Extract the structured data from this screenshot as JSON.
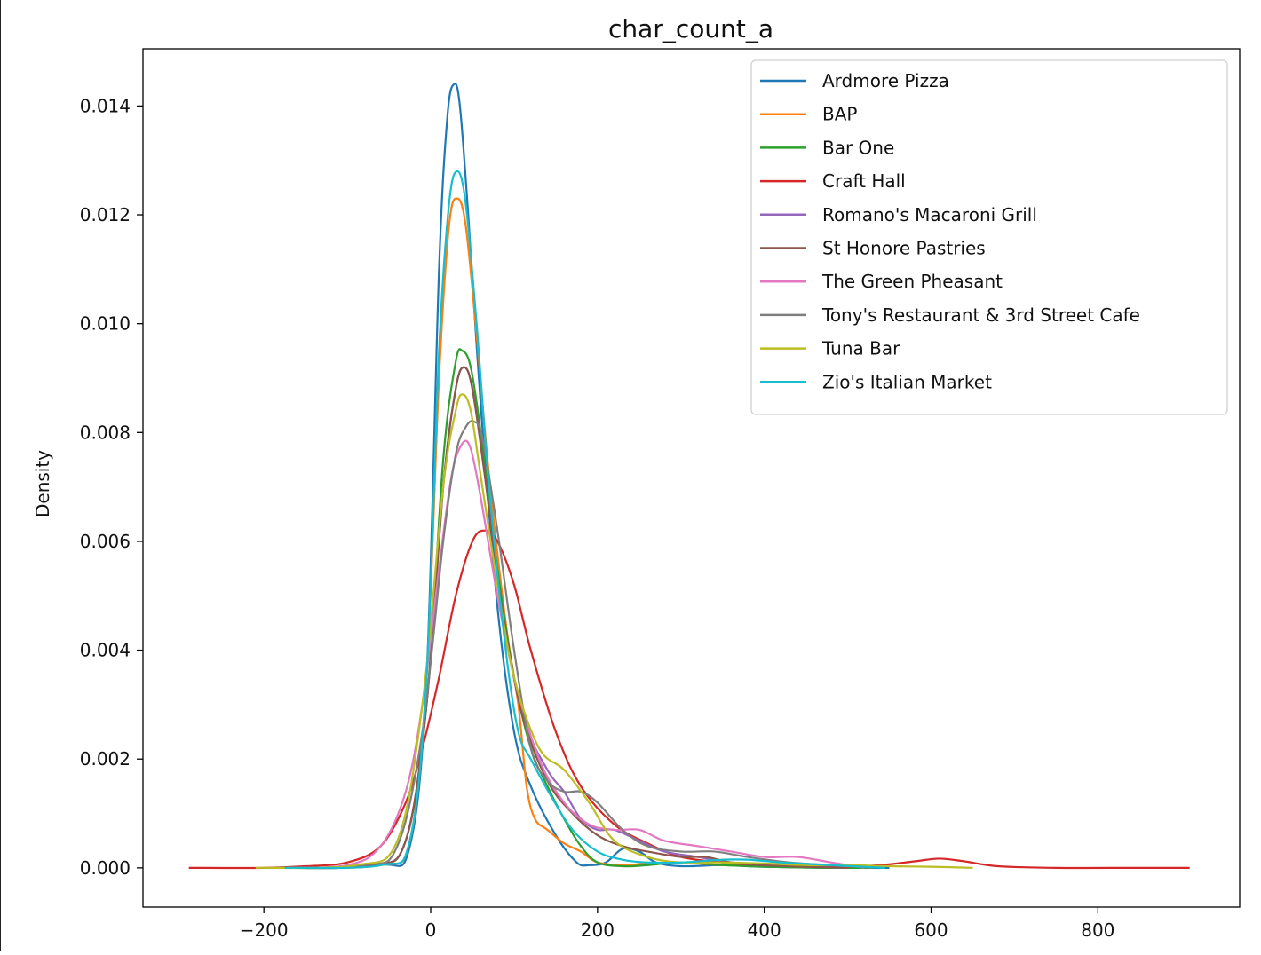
{
  "chart_data": {
    "type": "line",
    "title": "char_count_a",
    "xlabel": "",
    "ylabel": "Density",
    "xlim": [
      -345,
      970
    ],
    "ylim": [
      -0.00072,
      0.01505
    ],
    "xticks": [
      -200,
      0,
      200,
      400,
      600,
      800
    ],
    "xtick_labels": [
      "−200",
      "0",
      "200",
      "400",
      "600",
      "800"
    ],
    "yticks": [
      0.0,
      0.002,
      0.004,
      0.006,
      0.008,
      0.01,
      0.012,
      0.014
    ],
    "ytick_labels": [
      "0.000",
      "0.002",
      "0.004",
      "0.006",
      "0.008",
      "0.010",
      "0.012",
      "0.014"
    ],
    "grid": false,
    "legend_position": "top-right",
    "series": [
      {
        "name": "Ardmore Pizza",
        "color": "#1f77b4",
        "x": [
          -170,
          -60,
          -25,
          -5,
          10,
          20,
          28,
          35,
          45,
          60,
          80,
          100,
          120,
          150,
          175,
          190,
          210,
          230,
          250,
          270,
          300,
          350,
          400,
          480,
          550
        ],
        "y": [
          0,
          5e-05,
          0.0004,
          0.0035,
          0.011,
          0.0138,
          0.0144,
          0.014,
          0.012,
          0.0085,
          0.0048,
          0.0025,
          0.0015,
          0.0006,
          0.0001,
          5e-05,
          0.0001,
          0.00035,
          0.0003,
          0.0001,
          3e-05,
          5e-05,
          2e-05,
          0,
          0
        ]
      },
      {
        "name": "BAP",
        "color": "#ff7f0e",
        "x": [
          -180,
          -60,
          -25,
          -5,
          10,
          22,
          32,
          42,
          55,
          70,
          90,
          105,
          115,
          125,
          140,
          160,
          180,
          200,
          230,
          260,
          300,
          350,
          420,
          500
        ],
        "y": [
          0,
          5e-05,
          0.0005,
          0.0035,
          0.009,
          0.0118,
          0.0123,
          0.0118,
          0.0098,
          0.0072,
          0.0045,
          0.003,
          0.0015,
          0.0009,
          0.0007,
          0.00045,
          0.0003,
          0.0001,
          5e-05,
          8e-05,
          0.0001,
          5e-05,
          2e-05,
          0
        ]
      },
      {
        "name": "Bar One",
        "color": "#2ca02c",
        "x": [
          -190,
          -70,
          -30,
          -5,
          15,
          30,
          38,
          48,
          60,
          80,
          100,
          120,
          140,
          160,
          180,
          200,
          230,
          260,
          300,
          350,
          400,
          470,
          530
        ],
        "y": [
          0,
          5e-05,
          0.0005,
          0.003,
          0.0075,
          0.0093,
          0.0095,
          0.0092,
          0.008,
          0.0055,
          0.0035,
          0.0022,
          0.0015,
          0.0009,
          0.0004,
          0.0001,
          3e-05,
          5e-05,
          0.0001,
          5e-05,
          2e-05,
          0,
          0
        ]
      },
      {
        "name": "Craft Hall",
        "color": "#d62728",
        "x": [
          -290,
          -200,
          -150,
          -100,
          -60,
          -30,
          -10,
          10,
          30,
          50,
          65,
          80,
          100,
          120,
          150,
          180,
          220,
          260,
          300,
          350,
          400,
          450,
          500,
          540,
          580,
          610,
          640,
          680,
          750,
          850,
          910
        ],
        "y": [
          0,
          0,
          3e-05,
          0.0001,
          0.0004,
          0.0012,
          0.0022,
          0.0035,
          0.005,
          0.006,
          0.0062,
          0.006,
          0.0052,
          0.004,
          0.0025,
          0.0015,
          0.0008,
          0.00045,
          0.0002,
          0.0001,
          5e-05,
          3e-05,
          2e-05,
          5e-05,
          0.00012,
          0.00017,
          0.00012,
          3e-05,
          0,
          0,
          0
        ]
      },
      {
        "name": "Romano's Macaroni Grill",
        "color": "#9467bd",
        "x": [
          -180,
          -70,
          -30,
          -5,
          15,
          30,
          40,
          50,
          65,
          85,
          110,
          140,
          160,
          180,
          200,
          220,
          250,
          280,
          320,
          360,
          400,
          450,
          500
        ],
        "y": [
          0,
          5e-05,
          0.0005,
          0.003,
          0.007,
          0.0088,
          0.0092,
          0.0088,
          0.0072,
          0.0048,
          0.0028,
          0.0018,
          0.0014,
          0.0009,
          0.0007,
          0.0007,
          0.0005,
          0.0003,
          0.0002,
          0.0001,
          5e-05,
          2e-05,
          0
        ]
      },
      {
        "name": "St Honore Pastries",
        "color": "#8c564b",
        "x": [
          -180,
          -70,
          -30,
          -5,
          15,
          30,
          40,
          50,
          65,
          85,
          110,
          140,
          170,
          200,
          230,
          260,
          300,
          330,
          360,
          400,
          450,
          500
        ],
        "y": [
          0,
          5e-05,
          0.0005,
          0.003,
          0.007,
          0.0088,
          0.0092,
          0.0088,
          0.0072,
          0.0048,
          0.0028,
          0.0016,
          0.001,
          0.0006,
          0.0004,
          0.0003,
          0.0002,
          0.0002,
          0.0001,
          5e-05,
          2e-05,
          0
        ]
      },
      {
        "name": "The Green Pheasant",
        "color": "#e377c2",
        "x": [
          -180,
          -100,
          -60,
          -30,
          -10,
          10,
          25,
          38,
          48,
          60,
          80,
          100,
          130,
          160,
          190,
          220,
          250,
          280,
          320,
          360,
          400,
          440,
          480,
          520
        ],
        "y": [
          0,
          5e-05,
          0.0004,
          0.0014,
          0.003,
          0.0055,
          0.0072,
          0.0078,
          0.0077,
          0.0068,
          0.005,
          0.0035,
          0.002,
          0.0012,
          0.0008,
          0.0007,
          0.0007,
          0.0005,
          0.0004,
          0.0003,
          0.0002,
          0.0002,
          0.0001,
          0
        ]
      },
      {
        "name": "Tony's Restaurant & 3rd Street Cafe",
        "color": "#7f7f7f",
        "x": [
          -190,
          -80,
          -40,
          -10,
          15,
          30,
          42,
          52,
          62,
          80,
          100,
          120,
          140,
          160,
          180,
          200,
          230,
          260,
          300,
          340,
          380,
          430,
          480,
          530
        ],
        "y": [
          0,
          5e-05,
          0.0004,
          0.0025,
          0.006,
          0.0076,
          0.0081,
          0.0082,
          0.0079,
          0.0062,
          0.004,
          0.0022,
          0.0016,
          0.0014,
          0.0014,
          0.0012,
          0.0007,
          0.0004,
          0.0003,
          0.0003,
          0.0002,
          0.0001,
          5e-05,
          0
        ]
      },
      {
        "name": "Tuna Bar",
        "color": "#bcbd22",
        "x": [
          -210,
          -90,
          -40,
          -10,
          15,
          30,
          38,
          48,
          60,
          80,
          100,
          130,
          160,
          190,
          220,
          260,
          300,
          350,
          400,
          450,
          500,
          550,
          600,
          650
        ],
        "y": [
          0,
          5e-05,
          0.0005,
          0.003,
          0.007,
          0.0084,
          0.0087,
          0.0084,
          0.0072,
          0.0052,
          0.0035,
          0.0022,
          0.0018,
          0.0012,
          0.0005,
          0.0002,
          0.0001,
          0.0001,
          8e-05,
          5e-05,
          5e-05,
          3e-05,
          2e-05,
          0
        ]
      },
      {
        "name": "Zio's Italian Market",
        "color": "#17becf",
        "x": [
          -175,
          -60,
          -25,
          -5,
          10,
          22,
          32,
          42,
          55,
          70,
          90,
          105,
          120,
          145,
          170,
          200,
          230,
          260,
          300,
          350,
          380,
          420,
          480,
          545
        ],
        "y": [
          0,
          5e-05,
          0.0005,
          0.0035,
          0.0095,
          0.0122,
          0.0128,
          0.0122,
          0.01,
          0.007,
          0.004,
          0.0025,
          0.002,
          0.0013,
          0.0007,
          0.0003,
          0.00015,
          0.0001,
          0.0001,
          0.00015,
          0.00015,
          0.0001,
          5e-05,
          0
        ]
      }
    ]
  }
}
